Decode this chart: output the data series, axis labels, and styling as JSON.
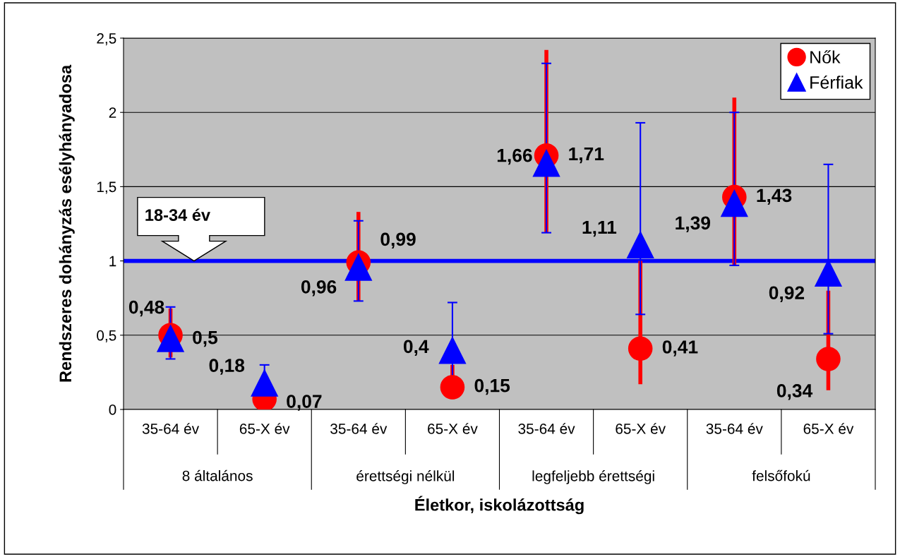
{
  "chart_data": {
    "type": "scatter",
    "xlabel": "Életkor, iskolázottság",
    "ylabel": "Rendszeres dohányzás esélyhányadosa",
    "categories": [
      "35-64 év",
      "65-X év",
      "35-64 év",
      "65-X év",
      "35-64 év",
      "65-X év",
      "35-64 év",
      "65-X év"
    ],
    "series": [
      {
        "name": "Nők",
        "color": "#ff0000",
        "marker": "circle",
        "values": [
          0.5,
          0.07,
          0.99,
          0.15,
          1.71,
          0.41,
          1.43,
          0.34
        ],
        "value_labels": [
          "0,5",
          "0,07",
          "0,99",
          "0,15",
          "1,71",
          "0,41",
          "1,43",
          "0,34"
        ],
        "errors": [
          [
            0.35,
            0.68
          ],
          null,
          [
            0.73,
            1.33
          ],
          [
            0.07,
            0.3
          ],
          [
            1.19,
            2.42
          ],
          [
            0.17,
            1.0
          ],
          [
            0.97,
            2.1
          ],
          [
            0.13,
            0.8
          ]
        ]
      },
      {
        "name": "Férfiak",
        "color": "#0000ff",
        "marker": "triangle",
        "values": [
          0.48,
          0.18,
          0.96,
          0.4,
          1.66,
          1.11,
          1.39,
          0.92
        ],
        "value_labels": [
          "0,48",
          "0,18",
          "0,96",
          "0,4",
          "1,66",
          "1,11",
          "1,39",
          "0,92"
        ],
        "errors": [
          [
            0.34,
            0.69
          ],
          [
            0.1,
            0.3
          ],
          [
            0.73,
            1.27
          ],
          [
            0.22,
            0.72
          ],
          [
            1.19,
            2.33
          ],
          [
            0.64,
            1.93
          ],
          [
            0.97,
            2.0
          ],
          [
            0.51,
            1.65
          ]
        ]
      }
    ],
    "ylim": [
      0,
      2.5
    ],
    "yticks": [
      0,
      {
        "value": 0.5,
        "label": "0,5"
      },
      1,
      {
        "value": 1.5,
        "label": "1,5"
      },
      2,
      {
        "value": 2.5,
        "label": "2,5"
      }
    ],
    "grid": "y",
    "legend": "top right",
    "ref_lines": [
      {
        "axis": "y",
        "value": 1,
        "color": "#0000ff",
        "line_style": "solid"
      }
    ],
    "annotations": [
      {
        "text": "18-34 év",
        "y": 1
      },
      "8 általános",
      "érettségi nélkül",
      "legfeljebb érettségi",
      "felsőfokú"
    ]
  }
}
